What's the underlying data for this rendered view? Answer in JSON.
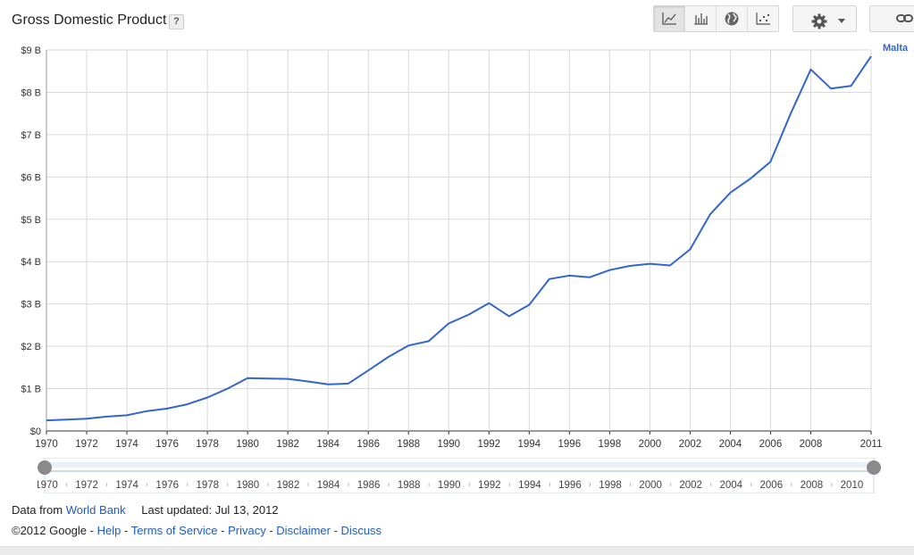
{
  "header": {
    "title": "Gross Domestic Product",
    "help_label": "?",
    "chart_type_buttons": [
      {
        "icon": "line-chart-icon",
        "active": true
      },
      {
        "icon": "bar-chart-icon",
        "active": false
      },
      {
        "icon": "globe-map-icon",
        "active": false
      },
      {
        "icon": "scatter-chart-icon",
        "active": false
      }
    ],
    "settings_icon": "gear-icon",
    "dropdown_icon": "caret-down-icon",
    "link_icon": "chain-link-icon"
  },
  "footer": {
    "data_from_label": "Data from",
    "data_source_link": "World Bank",
    "last_updated": "Last updated: Jul 13, 2012",
    "copyright": "©2012 Google",
    "links": [
      "Help",
      "Terms of Service",
      "Privacy",
      "Disclaimer",
      "Discuss"
    ]
  },
  "colors": {
    "series": "#3366cc",
    "link": "#1f5bc6",
    "grid": "#d9d9d9"
  },
  "chart_data": {
    "type": "line",
    "title": "Gross Domestic Product",
    "xlim": [
      1970,
      2011
    ],
    "ylim": [
      0,
      9
    ],
    "y_ticks": [
      "$0",
      "$1 B",
      "$2 B",
      "$3 B",
      "$4 B",
      "$5 B",
      "$6 B",
      "$7 B",
      "$8 B",
      "$9 B"
    ],
    "x_ticks": [
      "1970",
      "1972",
      "1974",
      "1976",
      "1978",
      "1980",
      "1982",
      "1984",
      "1986",
      "1988",
      "1990",
      "1992",
      "1994",
      "1996",
      "1998",
      "2000",
      "2002",
      "2004",
      "2006",
      "2008",
      "2011"
    ],
    "grid": true,
    "legend_placement": "right-end-of-line",
    "series": [
      {
        "name": "Malta",
        "x": [
          1970,
          1971,
          1972,
          1973,
          1974,
          1975,
          1976,
          1977,
          1978,
          1979,
          1980,
          1981,
          1982,
          1983,
          1984,
          1985,
          1986,
          1987,
          1988,
          1989,
          1990,
          1991,
          1992,
          1993,
          1994,
          1995,
          1996,
          1997,
          1998,
          1999,
          2000,
          2001,
          2002,
          2003,
          2004,
          2005,
          2006,
          2007,
          2008,
          2009,
          2010,
          2011
        ],
        "values": [
          0.25,
          0.27,
          0.29,
          0.34,
          0.37,
          0.47,
          0.53,
          0.63,
          0.79,
          1.0,
          1.25,
          1.24,
          1.23,
          1.17,
          1.1,
          1.12,
          1.43,
          1.75,
          2.02,
          2.12,
          2.54,
          2.75,
          3.02,
          2.71,
          2.98,
          3.59,
          3.67,
          3.63,
          3.8,
          3.9,
          3.95,
          3.91,
          4.29,
          5.12,
          5.63,
          5.96,
          6.36,
          7.5,
          8.54,
          8.09,
          8.15,
          8.85
        ]
      }
    ]
  },
  "slider": {
    "labels": [
      "1970",
      "1972",
      "1974",
      "1976",
      "1978",
      "1980",
      "1982",
      "1984",
      "1986",
      "1988",
      "1990",
      "1992",
      "1994",
      "1996",
      "1998",
      "2000",
      "2002",
      "2004",
      "2006",
      "2008",
      "2010"
    ]
  }
}
